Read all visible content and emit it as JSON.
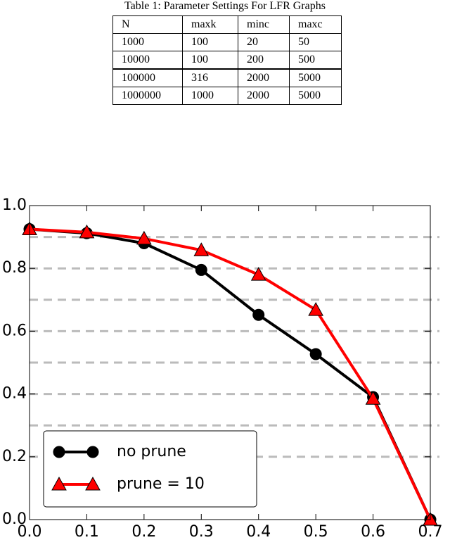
{
  "table": {
    "caption": "Table 1: Parameter Settings For LFR Graphs",
    "header": [
      "N",
      "maxk",
      "minc",
      "maxc"
    ],
    "rows": [
      [
        "1000",
        "100",
        "20",
        "50"
      ],
      [
        "10000",
        "100",
        "200",
        "500"
      ],
      [
        "100000",
        "316",
        "2000",
        "5000"
      ],
      [
        "1000000",
        "1000",
        "2000",
        "5000"
      ]
    ]
  },
  "chart_data": {
    "type": "line",
    "x": [
      0,
      0.1,
      0.2,
      0.3,
      0.4,
      0.5,
      0.6,
      0.7
    ],
    "series": [
      {
        "name": "no prune",
        "color": "#000000",
        "marker": "circle",
        "values": [
          0.925,
          0.912,
          0.88,
          0.795,
          0.652,
          0.527,
          0.39,
          0
        ]
      },
      {
        "name": "prune = 10",
        "color": "#ff0000",
        "marker": "triangle",
        "values": [
          0.925,
          0.915,
          0.895,
          0.858,
          0.78,
          0.668,
          0.385,
          0
        ]
      }
    ],
    "xlim": [
      0,
      0.7
    ],
    "ylim": [
      0,
      1
    ],
    "xticks": [
      {
        "value": 0,
        "label": "0.0"
      },
      0.1,
      0.2,
      0.3,
      0.4,
      0.5,
      0.6,
      0.7
    ],
    "yticks": [
      {
        "value": 0,
        "label": "0.0"
      },
      0.2,
      0.4,
      0.6,
      0.8,
      {
        "value": 1,
        "label": "1.0"
      }
    ],
    "reference_lines": [
      0.2,
      0.3,
      0.4,
      0.5,
      0.6,
      0.7,
      0.8,
      0.9
    ],
    "legend": "lower left"
  }
}
